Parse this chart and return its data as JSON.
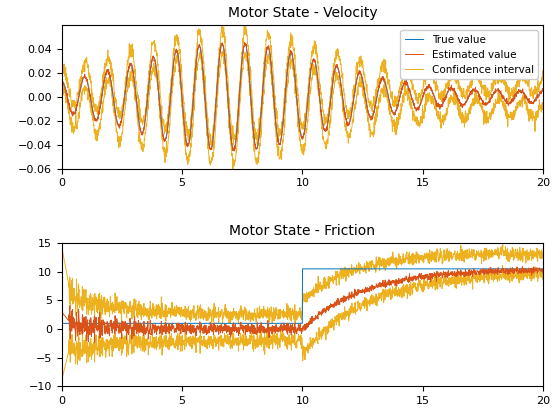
{
  "title1": "Motor State - Velocity",
  "title2": "Motor State - Friction",
  "legend_labels": [
    "True value",
    "Estimated value",
    "Confidence interval"
  ],
  "colors": {
    "true": "#0072BD",
    "estimated": "#D95319",
    "confidence": "#EDB120"
  },
  "velocity": {
    "xlim": [
      0,
      20
    ],
    "ylim": [
      -0.06,
      0.06
    ],
    "yticks": [
      -0.06,
      -0.04,
      -0.02,
      0.0,
      0.02,
      0.04
    ],
    "xticks": [
      0,
      5,
      10,
      15,
      20
    ]
  },
  "friction": {
    "xlim": [
      0,
      20
    ],
    "ylim": [
      -10,
      15
    ],
    "yticks": [
      -10,
      -5,
      0,
      5,
      10,
      15
    ],
    "xticks": [
      0,
      5,
      10,
      15,
      20
    ]
  },
  "figsize": [
    5.6,
    4.2
  ],
  "dpi": 100,
  "linewidth": 0.7
}
